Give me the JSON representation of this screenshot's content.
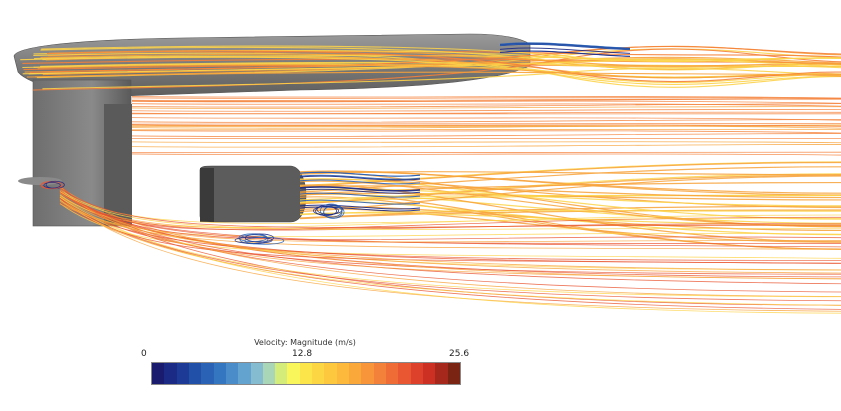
{
  "legend": {
    "title": "Velocity: Magnitude (m/s)",
    "min_label": "0",
    "mid_label": "12.8",
    "max_label": "25.6",
    "range": [
      0,
      25.6
    ],
    "colors": [
      "#1a1a6e",
      "#1b2a85",
      "#1d3a96",
      "#2150a8",
      "#2a62b6",
      "#3576c0",
      "#4a8cc9",
      "#63a3cf",
      "#86bccf",
      "#a8d6b6",
      "#d3ec7a",
      "#f8f65a",
      "#fce54a",
      "#fdd743",
      "#fdc83e",
      "#fcb93b",
      "#faa83a",
      "#f8953b",
      "#f4813a",
      "#ef6c37",
      "#e85632",
      "#dd412b",
      "#cb3023",
      "#a6281c",
      "#7a2414"
    ]
  },
  "scene": {
    "flow_colors": {
      "fast": "#f4813a",
      "freestream": "#f7a23a",
      "moderate": "#fcd34a",
      "slow": "#2a62b6",
      "very_slow": "#1b2a85"
    },
    "hull_color": "#7d7d7d"
  }
}
